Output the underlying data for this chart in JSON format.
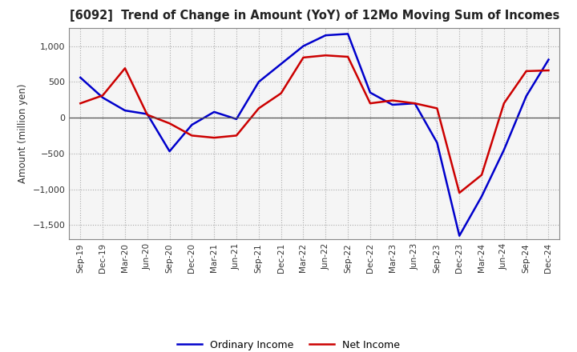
{
  "title": "[6092]  Trend of Change in Amount (YoY) of 12Mo Moving Sum of Incomes",
  "ylabel": "Amount (million yen)",
  "ylim": [
    -1700,
    1250
  ],
  "yticks": [
    -1500,
    -1000,
    -500,
    0,
    500,
    1000
  ],
  "background_color": "#ffffff",
  "plot_bg_color": "#f5f5f5",
  "grid_color": "#aaaaaa",
  "ordinary_income_color": "#0000cc",
  "net_income_color": "#cc0000",
  "legend_labels": [
    "Ordinary Income",
    "Net Income"
  ],
  "x_labels": [
    "Sep-19",
    "Dec-19",
    "Mar-20",
    "Jun-20",
    "Sep-20",
    "Dec-20",
    "Mar-21",
    "Jun-21",
    "Sep-21",
    "Dec-21",
    "Mar-22",
    "Jun-22",
    "Sep-22",
    "Dec-22",
    "Mar-23",
    "Jun-23",
    "Sep-23",
    "Dec-23",
    "Mar-24",
    "Jun-24",
    "Sep-24",
    "Dec-24"
  ],
  "ordinary_income": [
    560,
    280,
    100,
    50,
    -470,
    -100,
    80,
    -20,
    500,
    750,
    1000,
    1150,
    1170,
    350,
    180,
    200,
    -350,
    -1650,
    -1100,
    -450,
    300,
    810
  ],
  "net_income": [
    200,
    310,
    690,
    40,
    -80,
    -250,
    -280,
    -250,
    130,
    340,
    840,
    870,
    850,
    200,
    240,
    200,
    130,
    -1050,
    -800,
    200,
    650,
    660
  ]
}
